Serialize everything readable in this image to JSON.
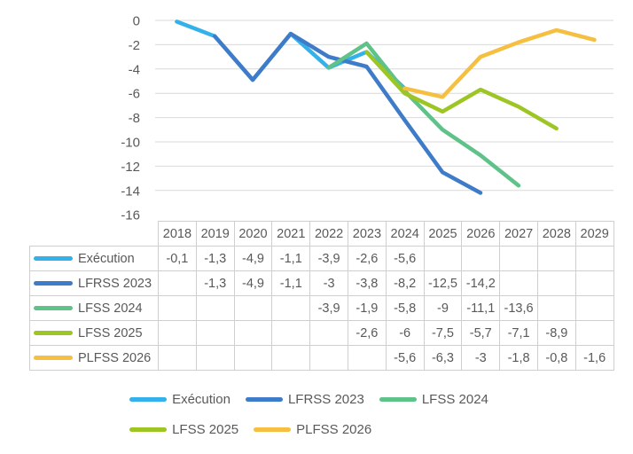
{
  "colors": {
    "text": "#595959",
    "gridline": "#D9D9D9",
    "table_border": "#D0CECE",
    "background": "#FFFFFF"
  },
  "chart_data": {
    "type": "line",
    "title": "",
    "xlabel": "",
    "ylabel": "",
    "categories": [
      "2018",
      "2019",
      "2020",
      "2021",
      "2022",
      "2023",
      "2024",
      "2025",
      "2026",
      "2027",
      "2028",
      "2029"
    ],
    "ylim": [
      -16,
      0
    ],
    "ytick_step": 2,
    "ytick_labels": [
      "0",
      "-2",
      "-4",
      "-6",
      "-8",
      "-10",
      "-12",
      "-14",
      "-16"
    ],
    "grid": true,
    "legend_position": "bottom",
    "series": [
      {
        "name": "Exécution",
        "color": "#34B1EB",
        "values": [
          -0.1,
          -1.3,
          -4.9,
          -1.1,
          -3.9,
          -2.6,
          -5.6,
          null,
          null,
          null,
          null,
          null
        ]
      },
      {
        "name": "LFRSS 2023",
        "color": "#3E7CC9",
        "values": [
          null,
          -1.3,
          -4.9,
          -1.1,
          -3,
          -3.8,
          -8.2,
          -12.5,
          -14.2,
          null,
          null,
          null
        ]
      },
      {
        "name": "LFSS 2024",
        "color": "#5EC289",
        "values": [
          null,
          null,
          null,
          null,
          -3.9,
          -1.9,
          -5.8,
          -9,
          -11.1,
          -13.6,
          null,
          null
        ]
      },
      {
        "name": "LFSS 2025",
        "color": "#9DC624",
        "values": [
          null,
          null,
          null,
          null,
          null,
          -2.6,
          -6,
          -7.5,
          -5.7,
          -7.1,
          -8.9,
          null
        ]
      },
      {
        "name": "PLFSS 2026",
        "color": "#F5BF42",
        "values": [
          null,
          null,
          null,
          null,
          null,
          null,
          -5.6,
          -6.3,
          -3,
          -1.8,
          -0.8,
          -1.6
        ]
      }
    ]
  },
  "table": {
    "header_years": [
      "2018",
      "2019",
      "2020",
      "2021",
      "2022",
      "2023",
      "2024",
      "2025",
      "2026",
      "2027",
      "2028",
      "2029"
    ],
    "rows": [
      {
        "label": "Exécution",
        "cells": [
          "-0,1",
          "-1,3",
          "-4,9",
          "-1,1",
          "-3,9",
          "-2,6",
          "-5,6",
          "",
          "",
          "",
          "",
          ""
        ]
      },
      {
        "label": "LFRSS 2023",
        "cells": [
          "",
          "-1,3",
          "-4,9",
          "-1,1",
          "-3",
          "-3,8",
          "-8,2",
          "-12,5",
          "-14,2",
          "",
          "",
          ""
        ]
      },
      {
        "label": "LFSS 2024",
        "cells": [
          "",
          "",
          "",
          "",
          "-3,9",
          "-1,9",
          "-5,8",
          "-9",
          "-11,1",
          "-13,6",
          "",
          ""
        ]
      },
      {
        "label": "LFSS 2025",
        "cells": [
          "",
          "",
          "",
          "",
          "",
          "-2,6",
          "-6",
          "-7,5",
          "-5,7",
          "-7,1",
          "-8,9",
          ""
        ]
      },
      {
        "label": "PLFSS 2026",
        "cells": [
          "",
          "",
          "",
          "",
          "",
          "",
          "-5,6",
          "-6,3",
          "-3",
          "-1,8",
          "-0,8",
          "-1,6"
        ]
      }
    ]
  },
  "legend": {
    "rows": [
      [
        "Exécution",
        "LFRSS 2023",
        "LFSS 2024"
      ],
      [
        "LFSS 2025",
        "PLFSS 2026"
      ]
    ]
  }
}
